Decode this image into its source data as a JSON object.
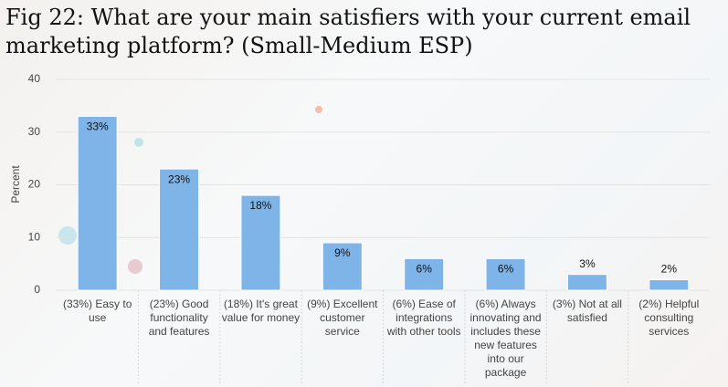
{
  "chart_data": {
    "type": "bar",
    "title": "Fig 22: What are your main satisfiers with your current email marketing platform? (Small-Medium ESP)",
    "y_label": "Percent",
    "categories": [
      "(33%) Easy to use",
      "(23%) Good functionality and features",
      "(18%) It's great value for money",
      "(9%) Excellent customer service",
      "(6%) Ease of integrations with other tools",
      "(6%) Always innovating and includes these new features into our package",
      "(3%) Not at all satisfied",
      "(2%) Helpful consulting services"
    ],
    "values": [
      33,
      23,
      18,
      9,
      6,
      6,
      3,
      2
    ],
    "value_labels": [
      "33%",
      "23%",
      "18%",
      "9%",
      "6%",
      "6%",
      "3%",
      "2%"
    ],
    "color": "#7eb4e8",
    "ylim": [
      0,
      40
    ],
    "yticks": [
      0,
      10,
      20,
      30,
      40
    ],
    "grid": true
  }
}
